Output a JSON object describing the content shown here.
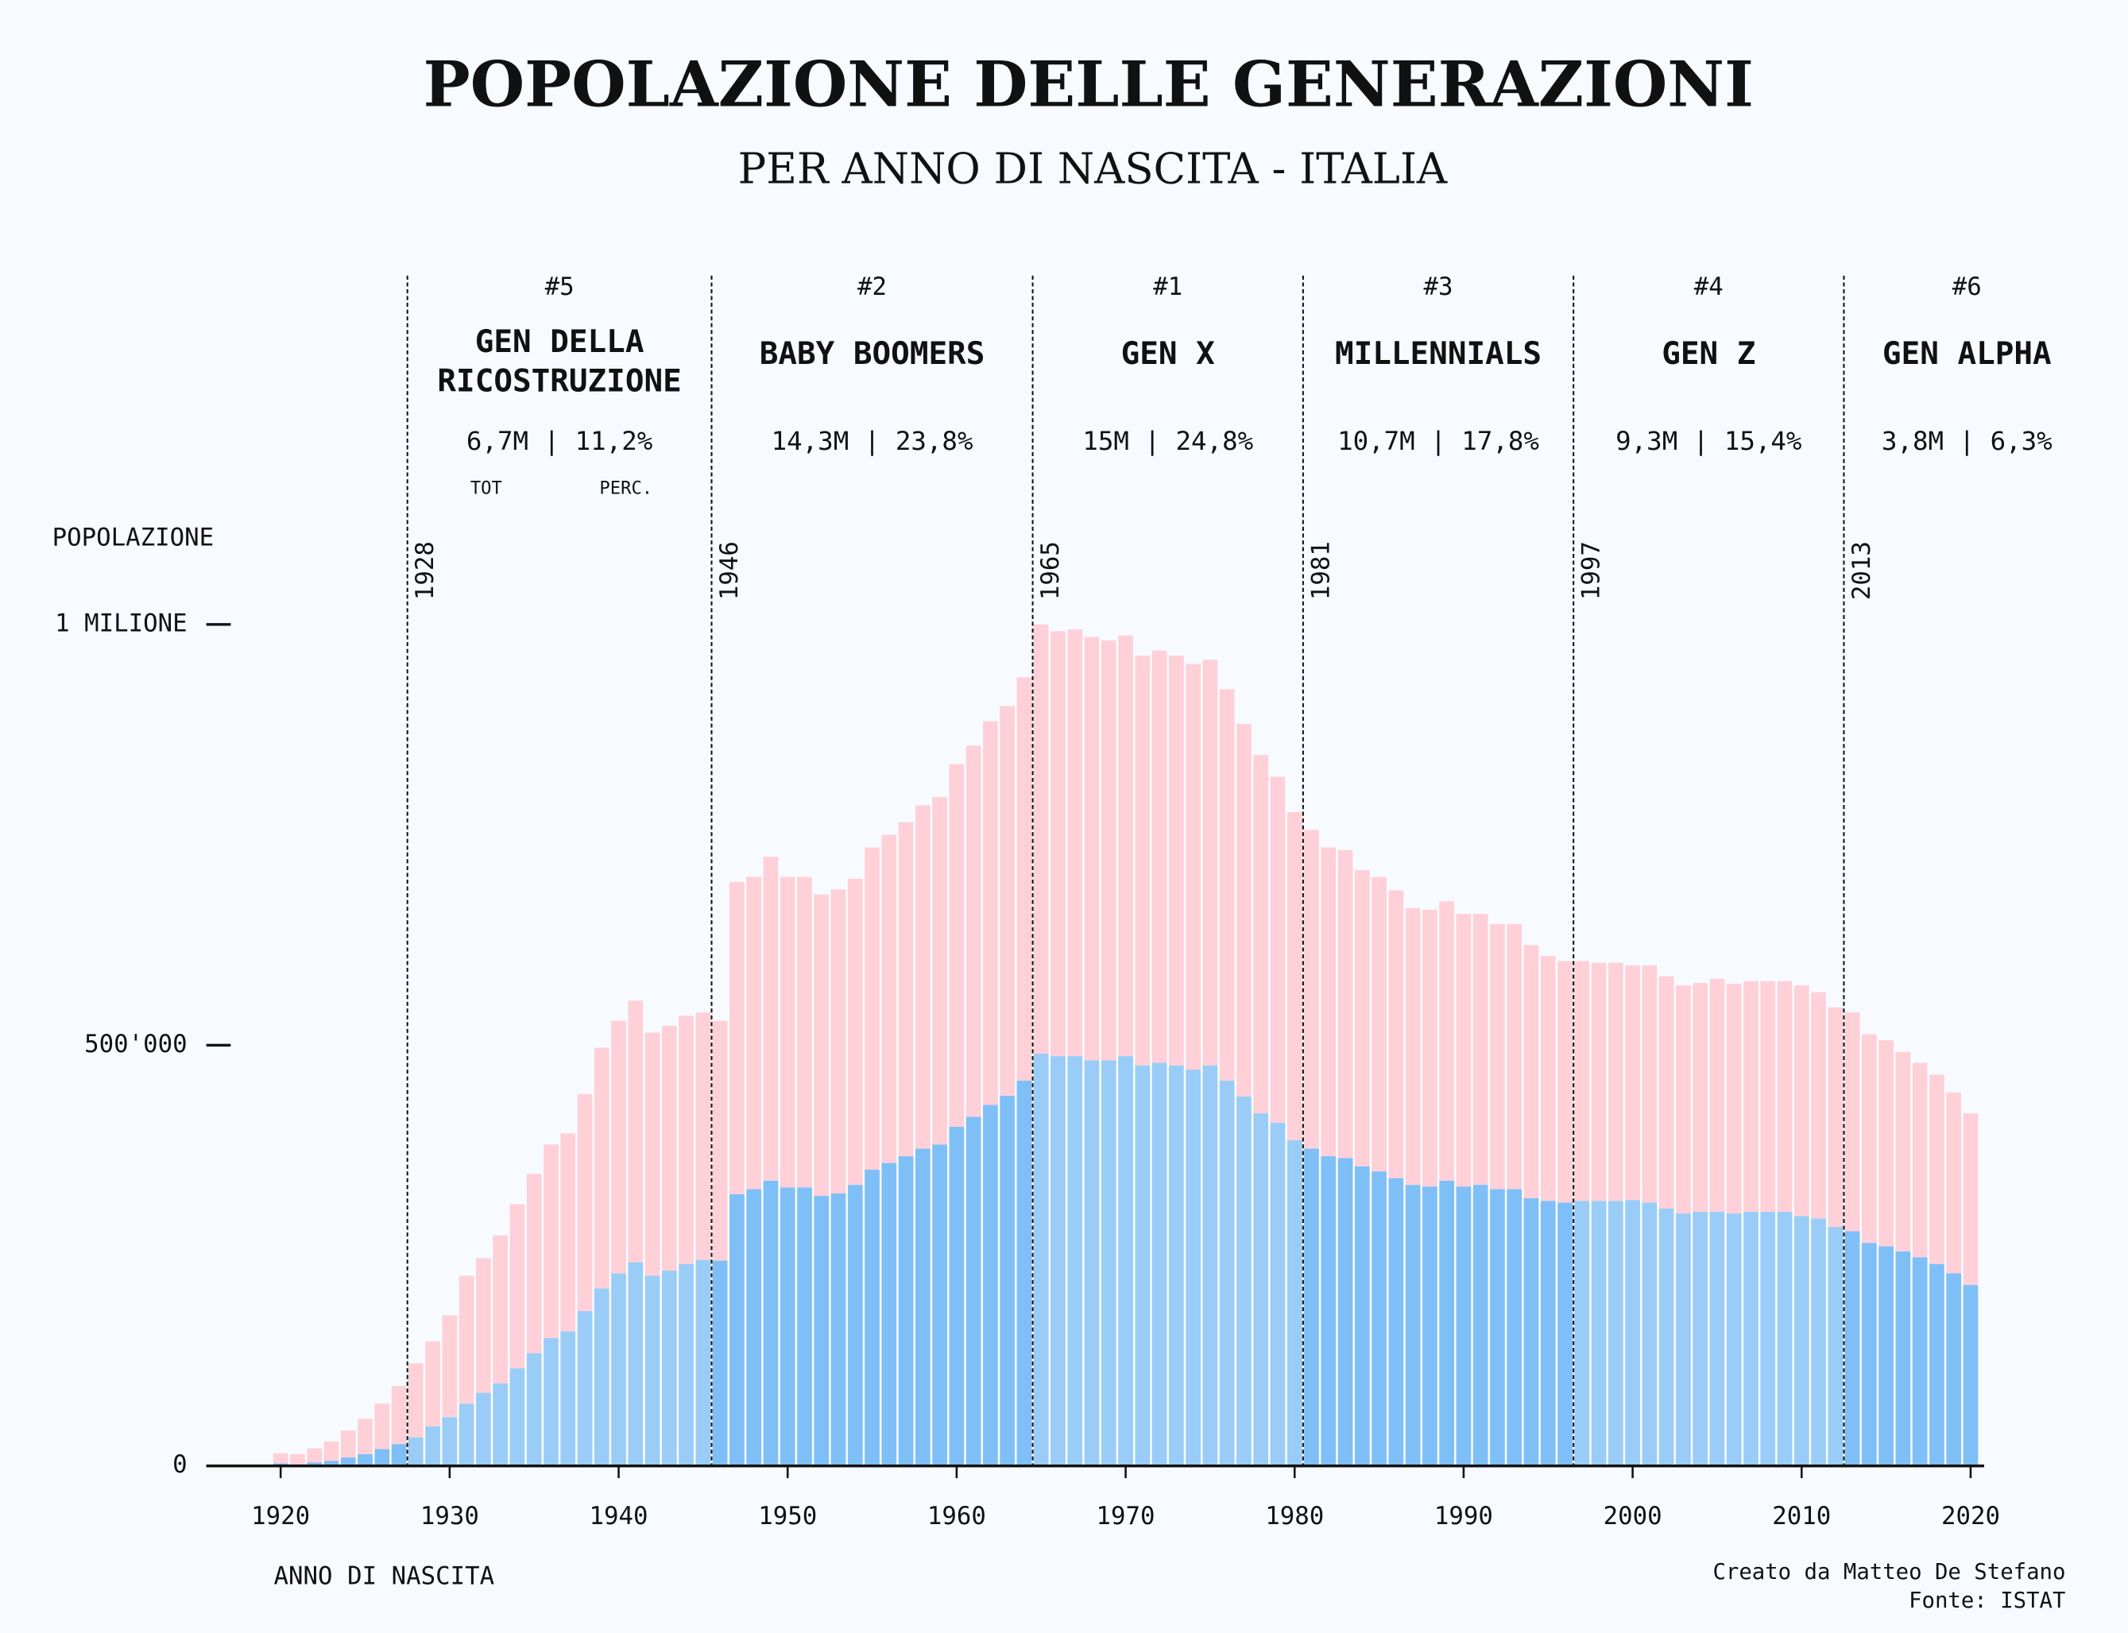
{
  "chart_data": {
    "type": "stacked_bar",
    "title": "POPOLAZIONE DELLE GENERAZIONI",
    "subtitle": "PER ANNO DI NASCITA - ITALIA",
    "y_label": "POPOLAZIONE",
    "x_label": "ANNO DI NASCITA",
    "credit": [
      "Creato da Matteo De Stefano",
      "Fonte: ISTAT"
    ],
    "x": [
      1920,
      1921,
      1922,
      1923,
      1924,
      1925,
      1926,
      1927,
      1928,
      1929,
      1930,
      1931,
      1932,
      1933,
      1934,
      1935,
      1936,
      1937,
      1938,
      1939,
      1940,
      1941,
      1942,
      1943,
      1944,
      1945,
      1946,
      1947,
      1948,
      1949,
      1950,
      1951,
      1952,
      1953,
      1954,
      1955,
      1956,
      1957,
      1958,
      1959,
      1960,
      1961,
      1962,
      1963,
      1964,
      1965,
      1966,
      1967,
      1968,
      1969,
      1970,
      1971,
      1972,
      1973,
      1974,
      1975,
      1976,
      1977,
      1978,
      1979,
      1980,
      1981,
      1982,
      1983,
      1984,
      1985,
      1986,
      1987,
      1988,
      1989,
      1990,
      1991,
      1992,
      1993,
      1994,
      1995,
      1996,
      1997,
      1998,
      1999,
      2000,
      2001,
      2002,
      2003,
      2004,
      2005,
      2006,
      2007,
      2008,
      2009,
      2010,
      2011,
      2012,
      2013,
      2014,
      2015,
      2016,
      2017,
      2018,
      2019,
      2020
    ],
    "series": [
      {
        "color": "#7fbff7",
        "values": [
          3000,
          2000,
          4000,
          6000,
          10000,
          14000,
          20000,
          26000,
          34000,
          47000,
          58000,
          74000,
          87000,
          98000,
          116000,
          134000,
          152000,
          160000,
          184000,
          211000,
          229000,
          242000,
          226000,
          232000,
          240000,
          245000,
          244000,
          323000,
          329000,
          339000,
          331000,
          331000,
          321000,
          324000,
          334000,
          352000,
          360000,
          368000,
          377000,
          382000,
          403000,
          415000,
          429000,
          440000,
          458000,
          490000,
          487000,
          487000,
          482000,
          482000,
          487000,
          476000,
          479000,
          476000,
          471000,
          476000,
          458000,
          439000,
          419000,
          408000,
          387000,
          377000,
          368000,
          366000,
          356000,
          350000,
          342000,
          334000,
          332000,
          339000,
          332000,
          334000,
          329000,
          329000,
          318000,
          315000,
          313000,
          315000,
          315000,
          315000,
          316000,
          313000,
          306000,
          300000,
          302000,
          302000,
          300000,
          302000,
          302000,
          302000,
          297000,
          294000,
          284000,
          279000,
          265000,
          261000,
          255000,
          248000,
          240000,
          229000,
          215000
        ]
      },
      {
        "color": "#ffd0d8",
        "values": [
          12000,
          12000,
          17000,
          23000,
          32000,
          42000,
          54000,
          69000,
          88000,
          101000,
          121000,
          152000,
          160000,
          176000,
          195000,
          213000,
          230000,
          235000,
          258000,
          286000,
          300000,
          311000,
          289000,
          291000,
          295000,
          294000,
          285000,
          371000,
          371000,
          385000,
          369000,
          369000,
          358000,
          361000,
          364000,
          383000,
          390000,
          397000,
          408000,
          413000,
          431000,
          441000,
          456000,
          463000,
          479000,
          510000,
          505000,
          507000,
          503000,
          499000,
          500000,
          487000,
          490000,
          487000,
          482000,
          482000,
          465000,
          443000,
          426000,
          411000,
          390000,
          379000,
          367000,
          366000,
          352000,
          350000,
          342000,
          329000,
          329000,
          332000,
          324000,
          322000,
          315000,
          315000,
          301000,
          291000,
          287000,
          285000,
          283000,
          283000,
          279000,
          282000,
          276000,
          271000,
          272000,
          277000,
          273000,
          274000,
          274000,
          274000,
          274000,
          269000,
          261000,
          260000,
          248000,
          245000,
          237000,
          231000,
          225000,
          215000,
          204000
        ]
      }
    ],
    "xlim": [
      1915.6,
      2020.8
    ],
    "xticks": [
      1920,
      1930,
      1940,
      1950,
      1960,
      1970,
      1980,
      1990,
      2000,
      2010,
      2020
    ],
    "ylim": [
      0,
      1000000
    ],
    "yticks": [
      0,
      {
        "value": 500000,
        "label": "500'000"
      },
      {
        "value": 1000000,
        "label": "1 MILIONE"
      }
    ],
    "stat_labels": [
      "TOT",
      "PERC."
    ],
    "generations": [
      {
        "rank": "#5",
        "name": [
          "GEN DELLA",
          "RICOSTRUZIONE"
        ],
        "stats": "6,7M | 11,2%",
        "start": 1928,
        "bar_color": "#99cdf7"
      },
      {
        "rank": "#2",
        "name": [
          "BABY BOOMERS"
        ],
        "stats": "14,3M | 23,8%",
        "start": 1946,
        "bar_color": "#7fbff7"
      },
      {
        "rank": "#1",
        "name": [
          "GEN X"
        ],
        "stats": "15M | 24,8%",
        "start": 1965,
        "bar_color": "#99cdf7"
      },
      {
        "rank": "#3",
        "name": [
          "MILLENNIALS"
        ],
        "stats": "10,7M | 17,8%",
        "start": 1981,
        "bar_color": "#7fbff7"
      },
      {
        "rank": "#4",
        "name": [
          "GEN Z"
        ],
        "stats": "9,3M | 15,4%",
        "start": 1997,
        "bar_color": "#99cdf7"
      },
      {
        "rank": "#6",
        "name": [
          "GEN ALPHA"
        ],
        "stats": "3,8M | 6,3%",
        "start": 2013,
        "bar_color": "#7fbff7"
      }
    ]
  }
}
